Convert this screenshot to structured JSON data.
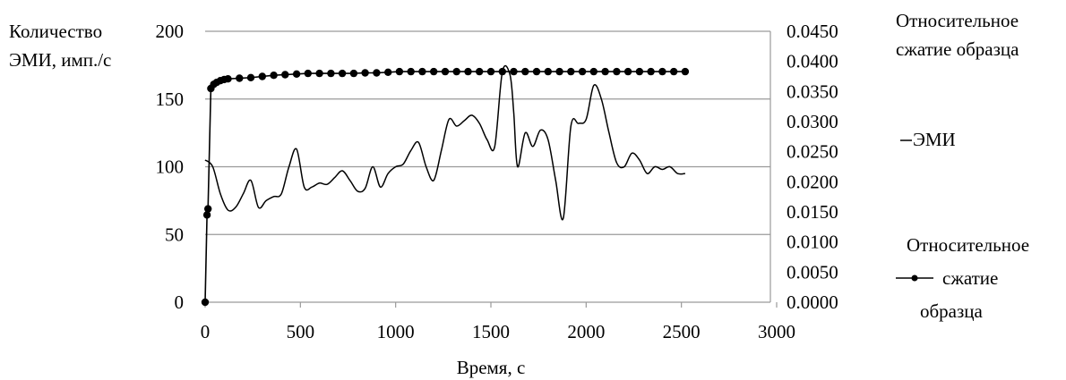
{
  "chart_data": {
    "type": "line",
    "x_axis": {
      "label": "Время, с",
      "min": 0,
      "max": 3000,
      "ticks": [
        0,
        500,
        1000,
        1500,
        2000,
        2500,
        3000
      ],
      "tick_labels": [
        "0",
        "500",
        "1000",
        "1500",
        "2000",
        "2500",
        "3000"
      ]
    },
    "y_left": {
      "label_lines": [
        "Количество",
        "ЭМИ, имп./с"
      ],
      "min": 0,
      "max": 200,
      "ticks": [
        0,
        50,
        100,
        150,
        200
      ],
      "tick_labels": [
        "0",
        "50",
        "100",
        "150",
        "200"
      ]
    },
    "y_right": {
      "label_lines": [
        "Относительное",
        "сжатие образца"
      ],
      "min": 0,
      "max": 0.045,
      "ticks": [
        0,
        0.005,
        0.01,
        0.015,
        0.02,
        0.025,
        0.03,
        0.035,
        0.04,
        0.045
      ],
      "tick_labels": [
        "0.0000",
        "0.0050",
        "0.0100",
        "0.0150",
        "0.0200",
        "0.0250",
        "0.0300",
        "0.0350",
        "0.0400",
        "0.0450"
      ]
    },
    "grid": "horizontal",
    "legend_position": "right",
    "series": [
      {
        "name": "ЭМИ",
        "axis": "left",
        "marker": "none",
        "color": "#000000",
        "x": [
          0,
          40,
          80,
          120,
          160,
          200,
          240,
          280,
          320,
          360,
          400,
          440,
          480,
          520,
          560,
          600,
          640,
          680,
          720,
          760,
          800,
          840,
          880,
          920,
          960,
          1000,
          1040,
          1080,
          1120,
          1160,
          1200,
          1240,
          1280,
          1320,
          1360,
          1400,
          1440,
          1480,
          1520,
          1560,
          1600,
          1620,
          1640,
          1680,
          1720,
          1760,
          1800,
          1840,
          1880,
          1920,
          1960,
          2000,
          2040,
          2080,
          2120,
          2160,
          2200,
          2240,
          2280,
          2320,
          2360,
          2400,
          2440,
          2480,
          2520
        ],
        "y": [
          105,
          100,
          80,
          68,
          70,
          80,
          90,
          70,
          75,
          78,
          80,
          100,
          113,
          85,
          85,
          88,
          87,
          92,
          97,
          90,
          82,
          84,
          100,
          85,
          95,
          100,
          102,
          112,
          118,
          100,
          90,
          112,
          135,
          130,
          134,
          138,
          132,
          120,
          115,
          170,
          168,
          140,
          100,
          125,
          115,
          127,
          120,
          90,
          62,
          130,
          132,
          135,
          160,
          150,
          125,
          103,
          100,
          110,
          105,
          95,
          100,
          98,
          100,
          95,
          95
        ]
      },
      {
        "name": "Относительное сжатие образца",
        "legend_lines": [
          "Относительное",
          "сжатие",
          "образца"
        ],
        "axis": "right",
        "marker": "circle",
        "color": "#000000",
        "x": [
          0,
          10,
          15,
          30,
          45,
          60,
          80,
          100,
          120,
          180,
          240,
          300,
          360,
          420,
          480,
          540,
          600,
          660,
          720,
          780,
          840,
          900,
          960,
          1020,
          1080,
          1140,
          1200,
          1260,
          1320,
          1380,
          1440,
          1500,
          1560,
          1620,
          1680,
          1740,
          1800,
          1860,
          1920,
          1980,
          2040,
          2100,
          2160,
          2220,
          2280,
          2340,
          2400,
          2460,
          2520
        ],
        "y": [
          0.0,
          0.0145,
          0.0155,
          0.0355,
          0.0362,
          0.0365,
          0.0368,
          0.037,
          0.0371,
          0.0372,
          0.0373,
          0.0375,
          0.0377,
          0.0378,
          0.0379,
          0.038,
          0.038,
          0.038,
          0.038,
          0.038,
          0.0381,
          0.0381,
          0.0382,
          0.0383,
          0.0383,
          0.0383,
          0.0383,
          0.0383,
          0.0383,
          0.0383,
          0.0383,
          0.0383,
          0.0383,
          0.0383,
          0.0383,
          0.0383,
          0.0383,
          0.0383,
          0.0383,
          0.0383,
          0.0383,
          0.0383,
          0.0383,
          0.0383,
          0.0383,
          0.0383,
          0.0383,
          0.0383,
          0.0383
        ]
      }
    ]
  }
}
